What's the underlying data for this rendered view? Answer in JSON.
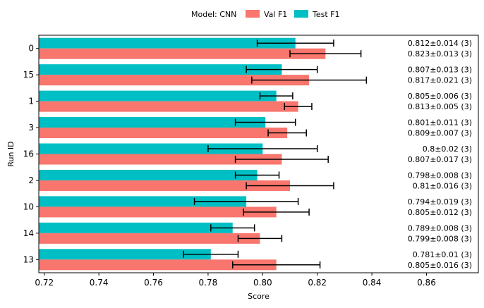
{
  "chart_data": {
    "type": "bar",
    "orientation": "horizontal",
    "xlabel": "Score",
    "ylabel": "Run ID",
    "xlim": [
      0.718,
      0.879
    ],
    "xticks": [
      0.72,
      0.74,
      0.76,
      0.78,
      0.8,
      0.82,
      0.84,
      0.86
    ],
    "xtick_labels": [
      "0.72",
      "0.74",
      "0.76",
      "0.78",
      "0.80",
      "0.82",
      "0.84",
      "0.86"
    ],
    "grid": false,
    "legend": {
      "placement": "top-center",
      "title": "Model: CNN",
      "entries": [
        {
          "name": "Val F1",
          "color": "#f8766d"
        },
        {
          "name": "Test F1",
          "color": "#00bfc4"
        }
      ]
    },
    "categories": [
      "0",
      "15",
      "1",
      "3",
      "16",
      "2",
      "10",
      "14",
      "13"
    ],
    "series": [
      {
        "name": "Val F1",
        "color": "#f8766d",
        "values": [
          0.823,
          0.817,
          0.813,
          0.809,
          0.807,
          0.81,
          0.805,
          0.799,
          0.805
        ],
        "errors": [
          0.013,
          0.021,
          0.005,
          0.007,
          0.017,
          0.016,
          0.012,
          0.008,
          0.016
        ],
        "labels": [
          "0.823±0.013 (3)",
          "0.817±0.021 (3)",
          "0.813±0.005 (3)",
          "0.809±0.007 (3)",
          "0.807±0.017 (3)",
          "0.81±0.016 (3)",
          "0.805±0.012 (3)",
          "0.799±0.008 (3)",
          "0.805±0.016 (3)"
        ]
      },
      {
        "name": "Test F1",
        "color": "#00bfc4",
        "values": [
          0.812,
          0.807,
          0.805,
          0.801,
          0.8,
          0.798,
          0.794,
          0.789,
          0.781
        ],
        "errors": [
          0.014,
          0.013,
          0.006,
          0.011,
          0.02,
          0.008,
          0.019,
          0.008,
          0.01
        ],
        "labels": [
          "0.812±0.014 (3)",
          "0.807±0.013 (3)",
          "0.805±0.006 (3)",
          "0.801±0.011 (3)",
          "0.8±0.02 (3)",
          "0.798±0.008 (3)",
          "0.794±0.019 (3)",
          "0.789±0.008 (3)",
          "0.781±0.01 (3)"
        ]
      }
    ]
  }
}
